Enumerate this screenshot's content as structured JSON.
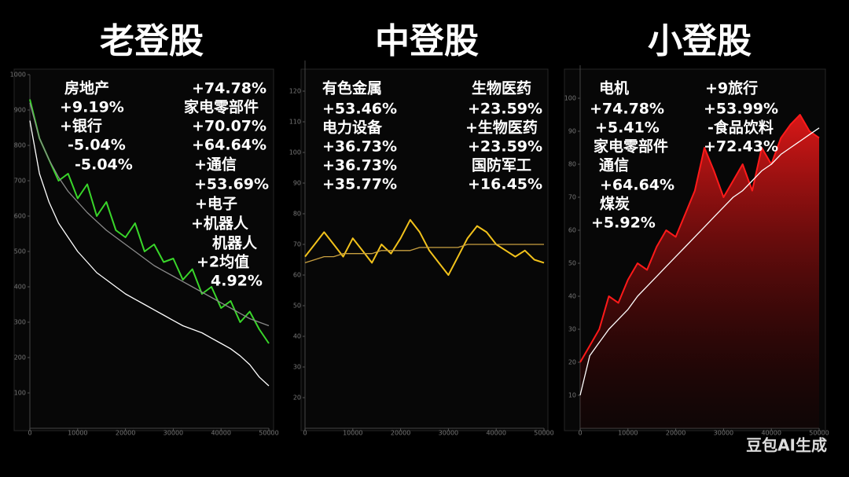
{
  "chart_data": [
    {
      "type": "line",
      "title": "老登股",
      "x": [
        0,
        2000,
        4000,
        6000,
        8000,
        10000,
        12000,
        14000,
        16000,
        18000,
        20000,
        22000,
        24000,
        26000,
        28000,
        30000,
        32000,
        34000,
        36000,
        38000,
        40000,
        42000,
        44000,
        46000,
        48000,
        50000
      ],
      "xlim": [
        0,
        50000
      ],
      "xticks": [
        0,
        10000,
        20000,
        30000,
        40000,
        50000
      ],
      "ylim": [
        0,
        1000
      ],
      "yticks": [
        100,
        200,
        300,
        400,
        500,
        600,
        700,
        800,
        900,
        1000
      ],
      "series": [
        {
          "color": "#39d62a",
          "values": [
            930,
            820,
            760,
            700,
            720,
            650,
            690,
            600,
            640,
            560,
            540,
            580,
            500,
            520,
            470,
            480,
            420,
            450,
            380,
            400,
            340,
            360,
            300,
            330,
            280,
            240
          ]
        },
        {
          "color": "#8a8a8a",
          "values": [
            920,
            820,
            760,
            710,
            670,
            640,
            610,
            585,
            560,
            540,
            520,
            500,
            480,
            460,
            445,
            430,
            415,
            400,
            385,
            370,
            355,
            340,
            325,
            310,
            300,
            290
          ]
        },
        {
          "color": "#ffffff",
          "values": [
            870,
            720,
            640,
            580,
            540,
            500,
            470,
            440,
            420,
            400,
            380,
            365,
            350,
            335,
            320,
            305,
            290,
            280,
            270,
            255,
            240,
            225,
            205,
            180,
            145,
            120
          ]
        }
      ],
      "annotations": [
        "房地产",
        "+74.78%",
        "+9.19%",
        "家电零部件",
        "+银行",
        "+70.07%",
        "-5.04%",
        "+64.64%",
        "-5.04%",
        "+通信",
        "+53.69%",
        "+电子",
        "+机器人",
        "机器人",
        "+2均值",
        "4.92%"
      ]
    },
    {
      "type": "line",
      "title": "中登股",
      "x": [
        0,
        2000,
        4000,
        6000,
        8000,
        10000,
        12000,
        14000,
        16000,
        18000,
        20000,
        22000,
        24000,
        26000,
        28000,
        30000,
        32000,
        34000,
        36000,
        38000,
        40000,
        42000,
        44000,
        46000,
        48000,
        50000
      ],
      "xlim": [
        0,
        50000
      ],
      "xticks": [
        0,
        10000,
        20000,
        30000,
        40000,
        50000
      ],
      "ylim": [
        10,
        130
      ],
      "yticks": [
        20,
        30,
        40,
        50,
        60,
        70,
        80,
        90,
        100,
        110,
        120
      ],
      "series": [
        {
          "color": "#f2c21b",
          "values": [
            66,
            70,
            74,
            70,
            66,
            72,
            68,
            64,
            70,
            67,
            72,
            78,
            74,
            68,
            64,
            60,
            66,
            72,
            76,
            74,
            70,
            68,
            66,
            68,
            65,
            64
          ]
        },
        {
          "color": "#c9a040",
          "values": [
            64,
            65,
            66,
            66,
            67,
            67,
            67,
            67,
            68,
            68,
            68,
            68,
            69,
            69,
            69,
            69,
            69,
            70,
            70,
            70,
            70,
            70,
            70,
            70,
            70,
            70
          ]
        }
      ],
      "annotations": [
        "有色金属",
        "生物医药",
        "+53.46%",
        "+23.59%",
        "电力设备",
        "+生物医药",
        "+36.73%",
        "+23.59%",
        "+36.73%",
        "国防军工",
        "+35.77%",
        "+16.45%"
      ]
    },
    {
      "type": "line",
      "title": "小登股",
      "x": [
        0,
        2000,
        4000,
        6000,
        8000,
        10000,
        12000,
        14000,
        16000,
        18000,
        20000,
        22000,
        24000,
        26000,
        28000,
        30000,
        32000,
        34000,
        36000,
        38000,
        40000,
        42000,
        44000,
        46000,
        48000,
        50000
      ],
      "xlim": [
        0,
        50000
      ],
      "xticks": [
        0,
        10000,
        20000,
        30000,
        40000,
        50000
      ],
      "ylim": [
        0,
        110
      ],
      "yticks": [
        10,
        20,
        30,
        40,
        50,
        60,
        70,
        80,
        90,
        100
      ],
      "series": [
        {
          "color": "#ff1a1a",
          "values": [
            20,
            25,
            30,
            40,
            38,
            45,
            50,
            48,
            55,
            60,
            58,
            65,
            72,
            85,
            78,
            70,
            75,
            80,
            72,
            85,
            80,
            88,
            92,
            95,
            90,
            88
          ]
        },
        {
          "color": "#ffffff",
          "values": [
            10,
            22,
            26,
            30,
            33,
            36,
            40,
            43,
            46,
            49,
            52,
            55,
            58,
            61,
            64,
            67,
            70,
            72,
            75,
            78,
            80,
            83,
            85,
            87,
            89,
            91
          ]
        }
      ],
      "annotations": [
        "电机",
        "+9旅行",
        "+74.78%",
        "+53.99%",
        "+5.41%",
        "-食品饮料",
        "家电零部件",
        "+72.43%",
        "通信",
        "+64.64%",
        "煤炭",
        "+5.92%"
      ]
    }
  ],
  "watermark": "豆包AI生成"
}
